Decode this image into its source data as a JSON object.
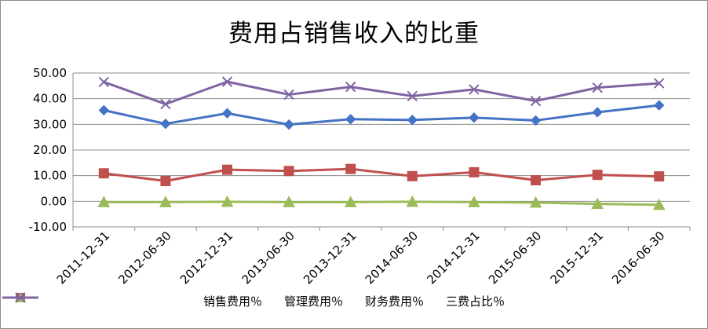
{
  "chart_data": {
    "type": "line",
    "title": "费用占销售收入的比重",
    "categories": [
      "2011-12-31",
      "2012-06-30",
      "2012-12-31",
      "2013-06-30",
      "2013-12-31",
      "2014-06-30",
      "2014-12-31",
      "2015-06-30",
      "2015-12-31",
      "2016-06-30"
    ],
    "y_ticks": [
      "50.00",
      "40.00",
      "30.00",
      "20.00",
      "10.00",
      "0.00",
      "-10.00"
    ],
    "ylim": [
      -10,
      50
    ],
    "grid": true,
    "legend_position": "bottom",
    "series": [
      {
        "name": "销售费用％",
        "color": "#4472c4",
        "marker": "diamond",
        "values": [
          35.5,
          30.2,
          34.3,
          29.9,
          32.0,
          31.7,
          32.6,
          31.5,
          34.7,
          37.4
        ]
      },
      {
        "name": "管理费用％",
        "color": "#c0504d",
        "marker": "square",
        "values": [
          10.9,
          7.9,
          12.3,
          11.8,
          12.6,
          9.8,
          11.3,
          8.2,
          10.3,
          9.7
        ]
      },
      {
        "name": "财务费用％",
        "color": "#9bbb59",
        "marker": "triangle",
        "values": [
          -0.3,
          -0.3,
          -0.2,
          -0.3,
          -0.3,
          -0.2,
          -0.3,
          -0.5,
          -1.0,
          -1.4
        ]
      },
      {
        "name": "三费占比％",
        "color": "#8064a2",
        "marker": "x",
        "values": [
          46.5,
          37.9,
          46.6,
          41.6,
          44.6,
          41.0,
          43.6,
          39.1,
          44.3,
          46.0
        ]
      }
    ]
  }
}
